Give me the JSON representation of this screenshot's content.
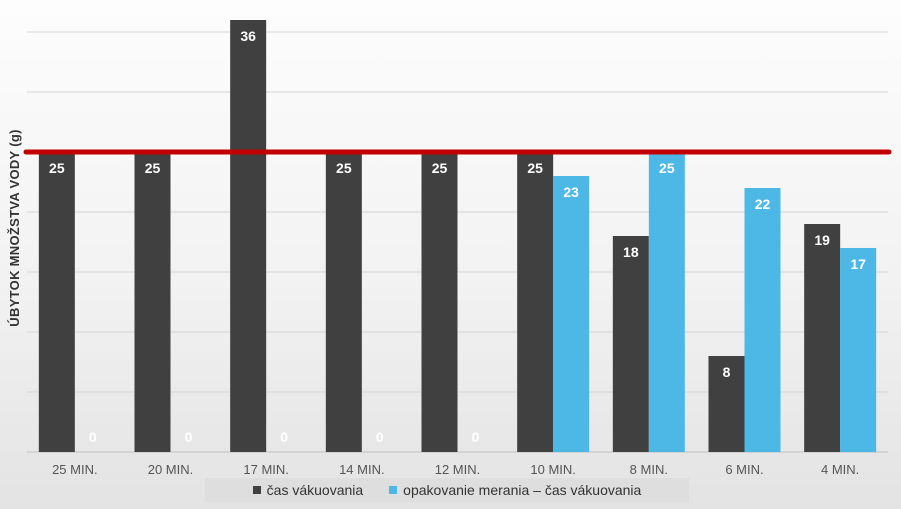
{
  "chart_data": {
    "type": "bar",
    "title": "",
    "xlabel": "",
    "ylabel": "ÚBYTOK MNOŽSTVA VODY (g)",
    "categories": [
      "25 MIN.",
      "20 MIN.",
      "17 MIN.",
      "14 MIN.",
      "12 MIN.",
      "10 MIN.",
      "8 MIN.",
      "6 MIN.",
      "4 MIN."
    ],
    "series": [
      {
        "name": "čas vákuovania",
        "color": "#404040",
        "values": [
          25,
          25,
          36,
          25,
          25,
          25,
          18,
          8,
          19
        ]
      },
      {
        "name": "opakovanie merania – čas vákuovania",
        "color": "#4DB8E5",
        "values": [
          0,
          0,
          0,
          0,
          0,
          23,
          25,
          22,
          17
        ]
      }
    ],
    "reference_line": {
      "value": 25,
      "color": "#C00000"
    },
    "ylim": [
      0,
      36
    ],
    "grid": true,
    "legend_position": "bottom",
    "data_labels": true
  }
}
